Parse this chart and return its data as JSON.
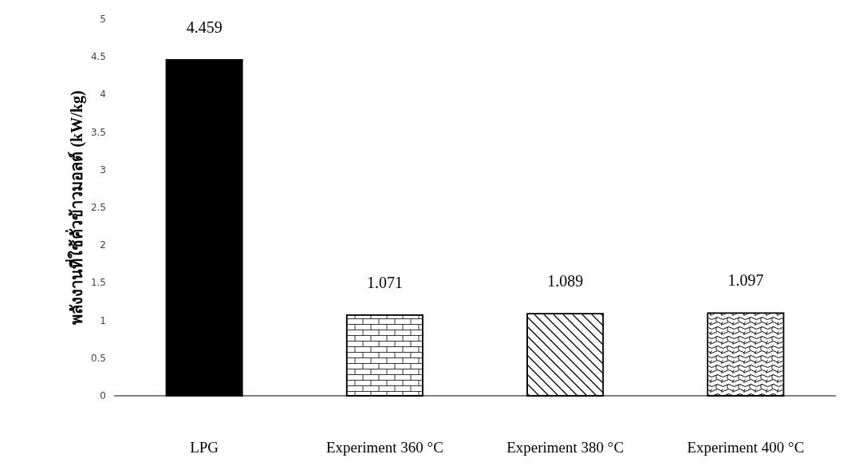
{
  "chart_data": {
    "type": "bar",
    "ylabel": "พลังงานที่ใช้คั่วข้าวมอลต์ (kW/kg)",
    "categories": [
      "LPG",
      "Experiment 360 °C",
      "Experiment 380 °C",
      "Experiment 400 °C"
    ],
    "values": [
      4.459,
      1.071,
      1.089,
      1.097
    ],
    "colors": [
      "#000000",
      "#ffffff",
      "#ffffff",
      "#ffffff"
    ],
    "ylim": [
      0,
      5
    ],
    "yticks": [
      0,
      0.5,
      1,
      1.5,
      2,
      2.5,
      3,
      3.5,
      4,
      4.5,
      5
    ],
    "data_labels": true,
    "grid": false
  }
}
